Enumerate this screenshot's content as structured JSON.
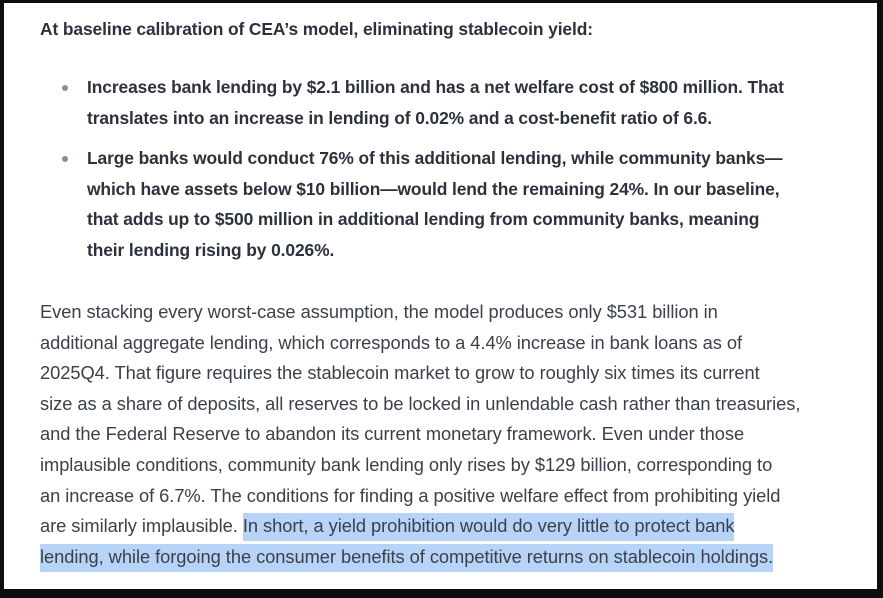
{
  "document": {
    "lead": "At baseline calibration of CEA’s model, eliminating stablecoin yield:",
    "bullets": [
      {
        "lines": [
          "Increases bank lending by $2.1 billion and has a net welfare cost of $800 million. That",
          "translates into an increase in lending of 0.02% and a cost-benefit ratio of 6.6."
        ]
      },
      {
        "lines": [
          "Large banks would conduct 76% of this additional lending, while community banks—",
          "which have assets below $10 billion—would lend the remaining 24%. In our baseline,",
          "that adds up to $500 million in additional lending from community banks, meaning",
          "their lending rising by 0.026%."
        ]
      }
    ],
    "paragraph": {
      "lines": [
        "Even stacking every worst-case assumption, the model produces only $531 billion in",
        "additional aggregate lending, which corresponds to a 4.4% increase in bank loans as of",
        "2025Q4. That figure requires the stablecoin market to grow to roughly six times its current",
        "size as a share of deposits, all reserves to be locked in unlendable cash rather than treasuries,",
        "and the Federal Reserve to abandon its current monetary framework. Even under those",
        "implausible conditions, community bank lending only rises by $129 billion, corresponding to",
        "an increase of 6.7%. The conditions for finding a positive welfare effect from prohibiting yield"
      ],
      "line8_unselected": "are similarly implausible. ",
      "line8_selected": "In short, a yield prohibition would do very little to protect bank",
      "line9_selected": "lending, while forgoing the consumer benefits of competitive returns on stablecoin holdings."
    },
    "colors": {
      "text_bold": "#2c313c",
      "text_regular": "#3b404b",
      "bullet_dot": "#8a8f98",
      "selection_highlight": "#b7d3f7",
      "frame_border": "#0e0e0e",
      "background": "#ffffff"
    }
  }
}
